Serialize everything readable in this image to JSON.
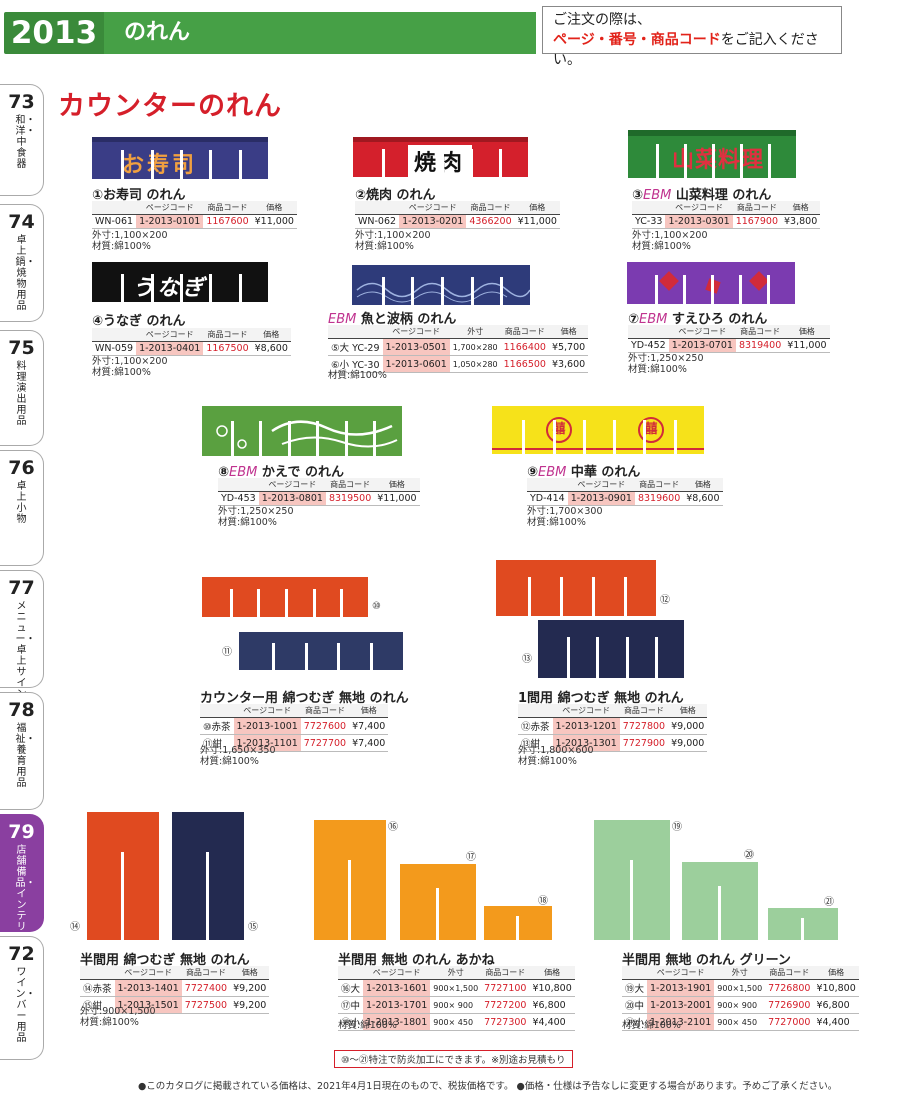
{
  "header": {
    "page": "2013",
    "category": "のれん",
    "note_line1": "ご注文の際は、",
    "note_red": "ページ・番号・商品コード",
    "note_rest": "をご記入ください。"
  },
  "tabs": [
    {
      "num": "73",
      "label": "和・洋・中食器"
    },
    {
      "num": "74",
      "label": "卓上鍋・焼物用品"
    },
    {
      "num": "75",
      "label": "料理演出用品"
    },
    {
      "num": "76",
      "label": "卓上小物"
    },
    {
      "num": "77",
      "label": "メニュー・卓上サイン"
    },
    {
      "num": "78",
      "label": "福祉・養育用品"
    },
    {
      "num": "79",
      "label": "店舗備品・インテリア"
    },
    {
      "num": "72",
      "label": "ワイン・バー用品"
    }
  ],
  "section_title": "カウンターのれん",
  "colors": {
    "accent_green": "#3a8a3a",
    "title_red": "#d51f2a",
    "ebm_magenta": "#c0338f",
    "active_tab": "#8a3fa0"
  },
  "headers": {
    "page_code": "ページコード",
    "item_code": "商品コード",
    "price": "価格",
    "size": "外寸"
  },
  "products": {
    "p1": {
      "num": "①",
      "name": "お寿司 のれん",
      "code": "WN-061",
      "page_code": "1-2013-0101",
      "item_code": "1167600",
      "price": "¥11,000",
      "size": "外寸:1,100×200",
      "material": "材質:綿100%",
      "print": "お寿司"
    },
    "p2": {
      "num": "②",
      "name": "焼肉 のれん",
      "code": "WN-062",
      "page_code": "1-2013-0201",
      "item_code": "4366200",
      "price": "¥11,000",
      "size": "外寸:1,100×200",
      "material": "材質:綿100%",
      "print": "焼肉"
    },
    "p3": {
      "num": "③",
      "ebm": "EBM",
      "name": "山菜料理 のれん",
      "code": "YC-33",
      "page_code": "1-2013-0301",
      "item_code": "1167900",
      "price": "¥3,800",
      "size": "外寸:1,100×200",
      "material": "材質:綿100%",
      "print": "山菜料理"
    },
    "p4": {
      "num": "④",
      "name": "うなぎ のれん",
      "code": "WN-059",
      "page_code": "1-2013-0401",
      "item_code": "1167500",
      "price": "¥8,600",
      "size": "外寸:1,100×200",
      "material": "材質:綿100%",
      "print": "うなぎ"
    },
    "p5": {
      "ebm": "EBM",
      "name": "魚と波柄 のれん",
      "material": "材質:綿100%",
      "rows": [
        {
          "num": "⑤大",
          "code": "YC-29",
          "page_code": "1-2013-0501",
          "size": "1,700×280",
          "item_code": "1166400",
          "price": "¥5,700"
        },
        {
          "num": "⑥小",
          "code": "YC-30",
          "page_code": "1-2013-0601",
          "size": "1,050×280",
          "item_code": "1166500",
          "price": "¥3,600"
        }
      ]
    },
    "p7": {
      "num": "⑦",
      "ebm": "EBM",
      "name": "すえひろ のれん",
      "code": "YD-452",
      "page_code": "1-2013-0701",
      "item_code": "8319400",
      "price": "¥11,000",
      "size": "外寸:1,250×250",
      "material": "材質:綿100%"
    },
    "p8": {
      "num": "⑧",
      "ebm": "EBM",
      "name": "かえで のれん",
      "code": "YD-453",
      "page_code": "1-2013-0801",
      "item_code": "8319500",
      "price": "¥11,000",
      "size": "外寸:1,250×250",
      "material": "材質:綿100%"
    },
    "p9": {
      "num": "⑨",
      "ebm": "EBM",
      "name": "中華 のれん",
      "code": "YD-414",
      "page_code": "1-2013-0901",
      "item_code": "8319600",
      "price": "¥8,600",
      "size": "外寸:1,700×300",
      "material": "材質:綿100%",
      "print": "囍"
    },
    "p10": {
      "name": "カウンター用 綿つむぎ 無地 のれん",
      "size": "外寸:1,650×350",
      "material": "材質:綿100%",
      "n10": "⑩",
      "n11": "⑪",
      "rows": [
        {
          "num": "⑩赤茶",
          "page_code": "1-2013-1001",
          "item_code": "7727600",
          "price": "¥7,400"
        },
        {
          "num": "⑪紺",
          "page_code": "1-2013-1101",
          "item_code": "7727700",
          "price": "¥7,400"
        }
      ]
    },
    "p12": {
      "name": "1間用 綿つむぎ 無地 のれん",
      "size": "外寸:1,800×600",
      "material": "材質:綿100%",
      "n12": "⑫",
      "n13": "⑬",
      "rows": [
        {
          "num": "⑫赤茶",
          "page_code": "1-2013-1201",
          "item_code": "7727800",
          "price": "¥9,000"
        },
        {
          "num": "⑬紺",
          "page_code": "1-2013-1301",
          "item_code": "7727900",
          "price": "¥9,000"
        }
      ]
    },
    "p14": {
      "name": "半間用 綿つむぎ 無地 のれん",
      "size": "外寸:900×1,500",
      "material": "材質:綿100%",
      "n14": "⑭",
      "n15": "⑮",
      "rows": [
        {
          "num": "⑭赤茶",
          "page_code": "1-2013-1401",
          "item_code": "7727400",
          "price": "¥9,200"
        },
        {
          "num": "⑮紺",
          "page_code": "1-2013-1501",
          "item_code": "7727500",
          "price": "¥9,200"
        }
      ]
    },
    "p16": {
      "name": "半間用 無地 のれん あかね",
      "material": "材質:綿100%",
      "n16": "⑯",
      "n17": "⑰",
      "n18": "⑱",
      "rows": [
        {
          "num": "⑯大",
          "page_code": "1-2013-1601",
          "size": "900×1,500",
          "item_code": "7727100",
          "price": "¥10,800"
        },
        {
          "num": "⑰中",
          "page_code": "1-2013-1701",
          "size": "900× 900",
          "item_code": "7727200",
          "price": "¥6,800"
        },
        {
          "num": "⑱小",
          "page_code": "1-2013-1801",
          "size": "900× 450",
          "item_code": "7727300",
          "price": "¥4,400"
        }
      ]
    },
    "p19": {
      "name": "半間用 無地 のれん グリーン",
      "material": "材質:綿100%",
      "n19": "⑲",
      "n20": "⑳",
      "n21": "㉑",
      "rows": [
        {
          "num": "⑲大",
          "page_code": "1-2013-1901",
          "size": "900×1,500",
          "item_code": "7726800",
          "price": "¥10,800"
        },
        {
          "num": "⑳中",
          "page_code": "1-2013-2001",
          "size": "900× 900",
          "item_code": "7726900",
          "price": "¥6,800"
        },
        {
          "num": "㉑小",
          "page_code": "1-2013-2101",
          "size": "900× 450",
          "item_code": "7727000",
          "price": "¥4,400"
        }
      ]
    }
  },
  "special_note": "⑩〜㉑特注で防炎加工にできます。※別途お見積もり",
  "footer": "●このカタログに掲載されている価格は、2021年4月1日現在のもので、税抜価格です。 ●価格・仕様は予告なしに変更する場合があります。予めご了承ください。"
}
